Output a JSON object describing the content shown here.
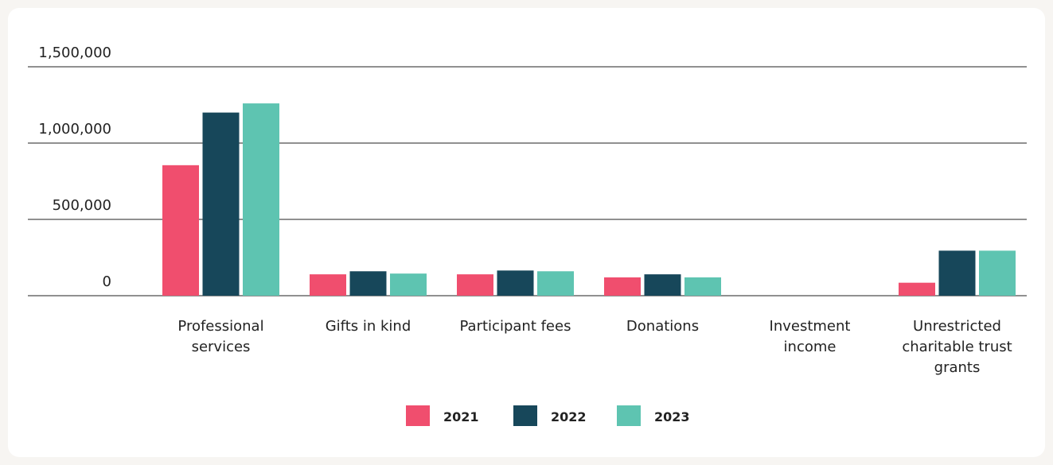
{
  "chart_data": {
    "type": "bar",
    "categories": [
      "Professional services",
      "Gifts in kind",
      "Participant fees",
      "Donations",
      "Investment income",
      "Unrestricted charitable trust grants"
    ],
    "series": [
      {
        "name": "2021",
        "color": "#f04e6e",
        "values": [
          855000,
          140000,
          140000,
          120000,
          0,
          85000
        ]
      },
      {
        "name": "2022",
        "color": "#17475a",
        "values": [
          1200000,
          160000,
          165000,
          140000,
          0,
          295000
        ]
      },
      {
        "name": "2023",
        "color": "#5ec4b1",
        "values": [
          1260000,
          145000,
          160000,
          120000,
          0,
          295000
        ]
      }
    ],
    "ylim": [
      0,
      1500000
    ],
    "yticks": [
      {
        "value": 0,
        "label": "0"
      },
      {
        "value": 500000,
        "label": "500,000"
      },
      {
        "value": 1000000,
        "label": "1,000,000"
      },
      {
        "value": 1500000,
        "label": "1,500,000"
      }
    ],
    "grid": true,
    "legend": "bottom"
  }
}
